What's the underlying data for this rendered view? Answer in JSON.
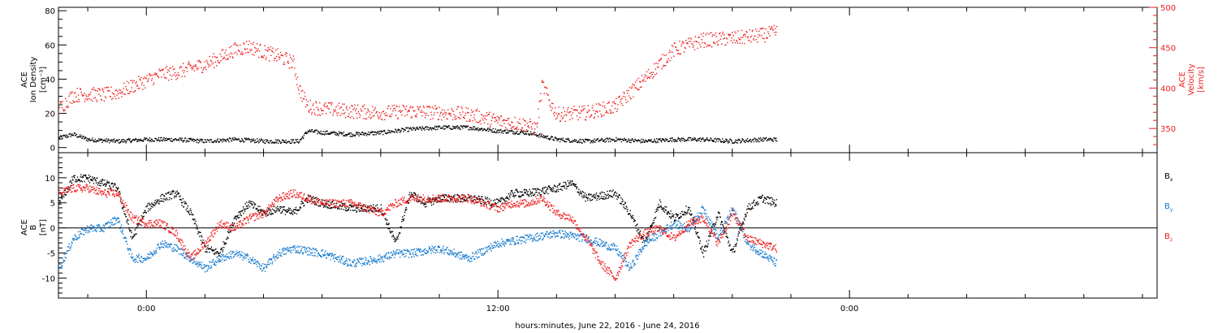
{
  "chart_data": [
    {
      "type": "scatter",
      "ylabel_lines": [
        "ACE",
        "Ion Density",
        "[cm⁻³]"
      ],
      "ylabel_right_lines": [
        "ACE",
        "Velocity",
        "[km/s]"
      ],
      "ylim": [
        -3,
        82
      ],
      "ylim_right": [
        320,
        500
      ],
      "yticks": [
        "0",
        "20",
        "40",
        "60",
        "80"
      ],
      "yticks_right": [
        "350",
        "400",
        "450",
        "500"
      ],
      "x_range_hours": [
        -3.0,
        34.5
      ],
      "x_data_end_hours": 21.5,
      "series": [
        {
          "color": "#000000",
          "axis": "left",
          "points": [
            [
              -3.0,
              6
            ],
            [
              -2.5,
              8
            ],
            [
              -2.0,
              5
            ],
            [
              -1.0,
              4
            ],
            [
              0.0,
              5
            ],
            [
              1.0,
              5
            ],
            [
              2.0,
              4
            ],
            [
              3.0,
              5
            ],
            [
              4.0,
              4
            ],
            [
              5.2,
              4
            ],
            [
              5.5,
              10
            ],
            [
              6.0,
              9
            ],
            [
              7.0,
              8
            ],
            [
              8.0,
              9
            ],
            [
              9.0,
              11
            ],
            [
              10.0,
              12
            ],
            [
              11.0,
              12
            ],
            [
              12.0,
              10
            ],
            [
              13.0,
              9
            ],
            [
              13.5,
              7
            ],
            [
              14.0,
              5
            ],
            [
              15.0,
              4
            ],
            [
              16.0,
              5
            ],
            [
              17.0,
              4
            ],
            [
              18.0,
              5
            ],
            [
              19.0,
              5
            ],
            [
              20.0,
              4
            ],
            [
              21.0,
              5
            ],
            [
              21.5,
              5
            ]
          ]
        },
        {
          "color": "#ee1c1c",
          "axis": "right",
          "points": [
            [
              -3.0,
              375
            ],
            [
              -2.5,
              392
            ],
            [
              -2.0,
              393
            ],
            [
              -1.5,
              392
            ],
            [
              -1.0,
              395
            ],
            [
              -0.5,
              403
            ],
            [
              0.0,
              410
            ],
            [
              0.5,
              418
            ],
            [
              1.0,
              420
            ],
            [
              1.5,
              425
            ],
            [
              2.0,
              430
            ],
            [
              2.5,
              438
            ],
            [
              3.0,
              448
            ],
            [
              3.5,
              452
            ],
            [
              4.0,
              445
            ],
            [
              4.5,
              440
            ],
            [
              5.0,
              432
            ],
            [
              5.2,
              400
            ],
            [
              5.5,
              378
            ],
            [
              6.0,
              375
            ],
            [
              7.0,
              372
            ],
            [
              8.0,
              370
            ],
            [
              9.0,
              372
            ],
            [
              10.0,
              370
            ],
            [
              11.0,
              368
            ],
            [
              12.0,
              360
            ],
            [
              13.0,
              355
            ],
            [
              13.3,
              350
            ],
            [
              13.5,
              405
            ],
            [
              13.8,
              380
            ],
            [
              14.0,
              368
            ],
            [
              15.0,
              370
            ],
            [
              16.0,
              378
            ],
            [
              17.0,
              412
            ],
            [
              18.0,
              448
            ],
            [
              19.0,
              460
            ],
            [
              20.0,
              462
            ],
            [
              21.0,
              466
            ],
            [
              21.5,
              470
            ]
          ]
        }
      ]
    },
    {
      "type": "scatter",
      "ylabel_lines": [
        "ACE",
        "B",
        "[nT]"
      ],
      "ylim": [
        -14,
        15
      ],
      "yticks": [
        "-10",
        "-5",
        "0",
        "5",
        "10"
      ],
      "x_range_hours": [
        -3.0,
        34.5
      ],
      "zero_line": true,
      "xticks": [
        {
          "hour": 0,
          "label": "0:00"
        },
        {
          "hour": 12,
          "label": "12:00"
        },
        {
          "hour": 24,
          "label": "0:00"
        }
      ],
      "xlabel": "hours:minutes, June 22, 2016 - June 24, 2016",
      "series": [
        {
          "name": "Bx",
          "name_main": "B",
          "name_sub": "x",
          "color": "#000000",
          "points": [
            [
              -3.0,
              5
            ],
            [
              -2.5,
              10
            ],
            [
              -2.0,
              10
            ],
            [
              -1.5,
              9
            ],
            [
              -1.0,
              8
            ],
            [
              -0.5,
              -2
            ],
            [
              0.0,
              4
            ],
            [
              0.5,
              6
            ],
            [
              1.0,
              7
            ],
            [
              1.5,
              3
            ],
            [
              2.0,
              -4
            ],
            [
              2.5,
              -5
            ],
            [
              3.0,
              2
            ],
            [
              3.5,
              5
            ],
            [
              4.0,
              3
            ],
            [
              4.5,
              4
            ],
            [
              5.0,
              3
            ],
            [
              5.5,
              6
            ],
            [
              6.0,
              5
            ],
            [
              7.0,
              4
            ],
            [
              8.0,
              4
            ],
            [
              8.5,
              -3
            ],
            [
              9.0,
              7
            ],
            [
              9.5,
              5
            ],
            [
              10.0,
              6
            ],
            [
              11.0,
              6
            ],
            [
              12.0,
              5
            ],
            [
              12.5,
              7
            ],
            [
              13.0,
              7
            ],
            [
              14.0,
              8
            ],
            [
              14.5,
              9
            ],
            [
              15.0,
              6
            ],
            [
              16.0,
              7
            ],
            [
              16.5,
              3
            ],
            [
              17.0,
              -3
            ],
            [
              17.5,
              5
            ],
            [
              18.0,
              2
            ],
            [
              18.5,
              4
            ],
            [
              19.0,
              -5
            ],
            [
              19.5,
              3
            ],
            [
              20.0,
              -5
            ],
            [
              20.5,
              4
            ],
            [
              21.0,
              6
            ],
            [
              21.5,
              5
            ]
          ]
        },
        {
          "name": "By",
          "name_main": "B",
          "name_sub": "y",
          "color": "#1177cc",
          "points": [
            [
              -3.0,
              -8
            ],
            [
              -2.5,
              -2
            ],
            [
              -2.0,
              0
            ],
            [
              -1.5,
              0
            ],
            [
              -1.0,
              2
            ],
            [
              -0.5,
              -6
            ],
            [
              0.0,
              -6
            ],
            [
              0.5,
              -3
            ],
            [
              1.0,
              -4
            ],
            [
              1.5,
              -6
            ],
            [
              2.0,
              -8
            ],
            [
              2.5,
              -6
            ],
            [
              3.0,
              -5
            ],
            [
              3.5,
              -6
            ],
            [
              4.0,
              -8
            ],
            [
              4.5,
              -5
            ],
            [
              5.0,
              -4
            ],
            [
              6.0,
              -5
            ],
            [
              7.0,
              -7
            ],
            [
              8.0,
              -6
            ],
            [
              8.5,
              -5
            ],
            [
              9.0,
              -5
            ],
            [
              10.0,
              -4
            ],
            [
              11.0,
              -6
            ],
            [
              12.0,
              -3
            ],
            [
              13.0,
              -2
            ],
            [
              14.0,
              -1
            ],
            [
              15.0,
              -2
            ],
            [
              16.0,
              -4
            ],
            [
              16.5,
              -8
            ],
            [
              17.0,
              -3
            ],
            [
              17.5,
              -1
            ],
            [
              18.0,
              1
            ],
            [
              18.5,
              0
            ],
            [
              19.0,
              4
            ],
            [
              19.5,
              -2
            ],
            [
              20.0,
              4
            ],
            [
              20.5,
              -3
            ],
            [
              21.0,
              -5
            ],
            [
              21.5,
              -7
            ]
          ]
        },
        {
          "name": "Bz",
          "name_main": "B",
          "name_sub": "z",
          "color": "#ee1c1c",
          "points": [
            [
              -3.0,
              7
            ],
            [
              -2.5,
              8
            ],
            [
              -2.0,
              8
            ],
            [
              -1.5,
              7
            ],
            [
              -1.0,
              7
            ],
            [
              -0.5,
              2
            ],
            [
              0.0,
              1
            ],
            [
              0.5,
              1
            ],
            [
              1.0,
              -1
            ],
            [
              1.5,
              -6
            ],
            [
              2.0,
              -3
            ],
            [
              2.5,
              1
            ],
            [
              3.0,
              0
            ],
            [
              3.5,
              2
            ],
            [
              4.0,
              3
            ],
            [
              4.5,
              6
            ],
            [
              5.0,
              7
            ],
            [
              5.5,
              6
            ],
            [
              6.0,
              5
            ],
            [
              7.0,
              5
            ],
            [
              8.0,
              3
            ],
            [
              8.5,
              5
            ],
            [
              9.0,
              6
            ],
            [
              10.0,
              6
            ],
            [
              11.0,
              6
            ],
            [
              12.0,
              4
            ],
            [
              12.5,
              5
            ],
            [
              13.0,
              5
            ],
            [
              13.5,
              6
            ],
            [
              14.0,
              3
            ],
            [
              14.5,
              2
            ],
            [
              15.0,
              -2
            ],
            [
              15.5,
              -7
            ],
            [
              16.0,
              -10
            ],
            [
              16.5,
              -3
            ],
            [
              17.0,
              -1
            ],
            [
              17.5,
              0
            ],
            [
              18.0,
              -2
            ],
            [
              18.5,
              1
            ],
            [
              19.0,
              2
            ],
            [
              19.5,
              -3
            ],
            [
              20.0,
              3
            ],
            [
              20.5,
              -2
            ],
            [
              21.0,
              -3
            ],
            [
              21.5,
              -4
            ]
          ]
        }
      ]
    }
  ]
}
